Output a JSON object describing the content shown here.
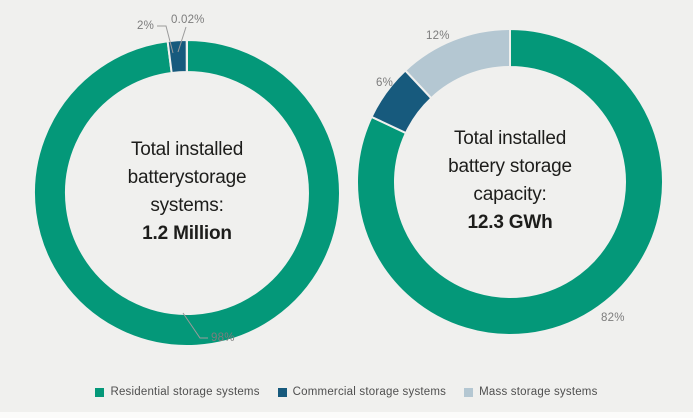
{
  "background": "#f0f0ee",
  "chart_data": [
    {
      "type": "pie",
      "subtype": "donut",
      "center_text_lines": [
        "Total installed",
        "batterystorage",
        "systems:"
      ],
      "center_text_value": "1.2 Million",
      "unit": "%",
      "series": [
        {
          "name": "Residential storage systems",
          "value": 98,
          "label": "98%",
          "color": "#049879"
        },
        {
          "name": "Commercial storage systems",
          "value": 2,
          "label": "2%",
          "color": "#175a7d"
        },
        {
          "name": "Mass storage systems",
          "value": 0.02,
          "label": "0.02%",
          "color": "#b4c7d2"
        }
      ],
      "start_angle_deg": 0,
      "direction": "clockwise",
      "legend_position": "bottom"
    },
    {
      "type": "pie",
      "subtype": "donut",
      "center_text_lines": [
        "Total installed",
        "battery storage",
        "capacity:"
      ],
      "center_text_value": "12.3 GWh",
      "unit": "%",
      "series": [
        {
          "name": "Residential storage systems",
          "value": 82,
          "label": "82%",
          "color": "#049879"
        },
        {
          "name": "Commercial storage systems",
          "value": 6,
          "label": "6%",
          "color": "#175a7d"
        },
        {
          "name": "Mass storage systems",
          "value": 12,
          "label": "12%",
          "color": "#b4c7d2"
        }
      ],
      "start_angle_deg": 0,
      "direction": "clockwise",
      "legend_position": "bottom"
    }
  ],
  "legend": {
    "items": [
      {
        "label": "Residential storage systems",
        "color": "#049879"
      },
      {
        "label": "Commercial storage systems",
        "color": "#175a7d"
      },
      {
        "label": "Mass storage systems",
        "color": "#b4c7d2"
      }
    ]
  }
}
